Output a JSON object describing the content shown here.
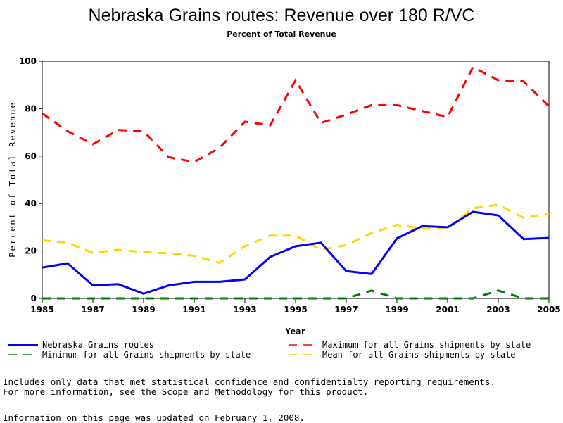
{
  "chart_data": {
    "type": "line",
    "title": "Nebraska Grains routes: Revenue over 180 R/VC",
    "subtitle": "Percent of Total Revenue",
    "xlabel": "Year",
    "ylabel": "Percent of Total Revenue",
    "xlim": [
      1985,
      2005
    ],
    "ylim": [
      0,
      100
    ],
    "xticks": [
      "1985",
      "1987",
      "1989",
      "1991",
      "1993",
      "1995",
      "1997",
      "1999",
      "2001",
      "2003",
      "2005"
    ],
    "yticks": [
      "0",
      "20",
      "40",
      "60",
      "80",
      "100"
    ],
    "x": [
      1985,
      1986,
      1987,
      1988,
      1989,
      1990,
      1991,
      1992,
      1993,
      1994,
      1995,
      1996,
      1997,
      1998,
      1999,
      2000,
      2001,
      2002,
      2003,
      2004,
      2005
    ],
    "series": [
      {
        "name": "Nebraska Grains routes",
        "color": "#0000ff",
        "dash": "solid",
        "values": [
          13,
          14.8,
          5.5,
          6,
          2,
          5.5,
          7,
          7,
          8,
          17.5,
          22,
          23.5,
          11.5,
          10.3,
          25.3,
          30.5,
          30,
          36.5,
          35,
          25,
          25.5
        ]
      },
      {
        "name": "Maximum for all Grains shipments by state",
        "color": "#ff0000",
        "dash": "dashed",
        "values": [
          78,
          70.5,
          65,
          71,
          70.5,
          59.5,
          57.5,
          63.5,
          74.5,
          73,
          92,
          74,
          77.5,
          81.5,
          81.5,
          79,
          76.5,
          97.5,
          92,
          91.5,
          81
        ]
      },
      {
        "name": "Minimum for all Grains shipments by state",
        "color": "#008000",
        "dash": "dashed",
        "values": [
          0,
          0,
          0,
          0,
          0,
          0,
          0,
          0,
          0,
          0,
          0,
          0,
          0,
          3.3,
          0,
          0,
          0,
          0,
          3.3,
          0,
          0
        ]
      },
      {
        "name": "Mean for all Grains shipments by state",
        "color": "#ffd700",
        "dash": "dashed",
        "values": [
          24.5,
          23.5,
          19.2,
          20.5,
          19.5,
          19,
          18,
          15,
          22,
          26.5,
          26.5,
          20.5,
          22.5,
          27.5,
          31,
          29.5,
          29.5,
          38,
          39.5,
          34,
          35.8
        ]
      }
    ]
  },
  "notes": {
    "line1": "Includes only data that met statistical confidence and confidentialty reporting requirements.",
    "line2": "For more information, see the Scope and Methodology for this product.",
    "line3": "Information on this page was updated on February 1, 2008."
  }
}
